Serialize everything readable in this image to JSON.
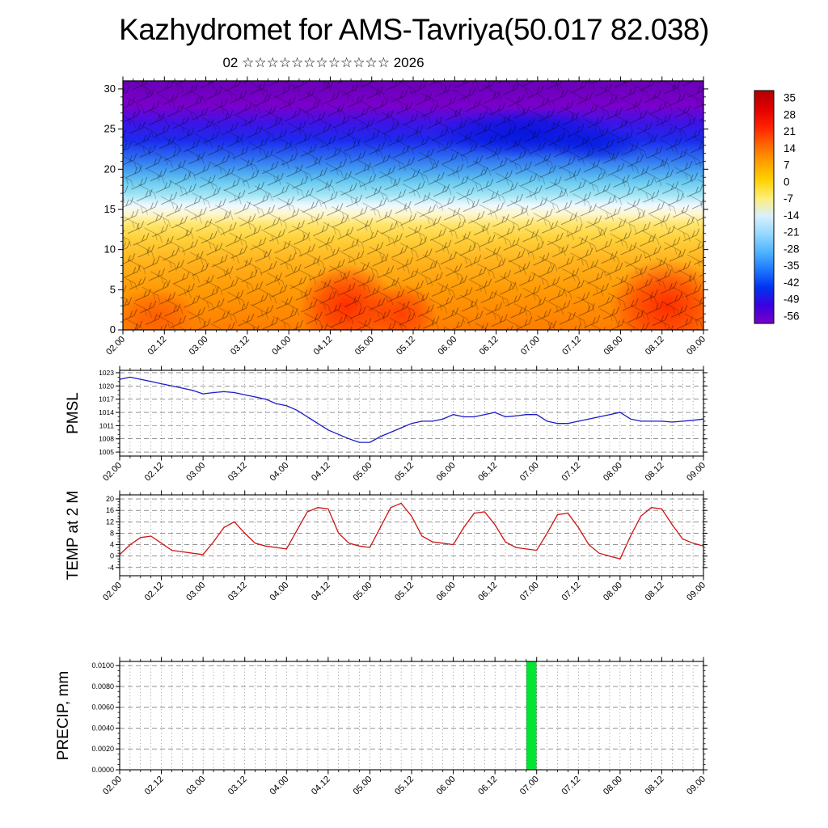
{
  "header": {
    "title": "Kazhydromet for AMS-Tavriya(50.017 82.038)",
    "subtitle": "02 ☆☆☆☆☆☆☆☆☆☆☆☆ 2026"
  },
  "time_axis": {
    "start": "02.00",
    "end": "09.00",
    "step_hours": 3,
    "labels": [
      "02.00",
      "02.12",
      "03.00",
      "03.12",
      "04.00",
      "04.12",
      "05.00",
      "05.12",
      "06.00",
      "06.12",
      "07.00",
      "07.12",
      "08.00",
      "08.12",
      "09.00"
    ]
  },
  "chart_data": [
    {
      "type": "heatmap",
      "name": "upper-air",
      "title": "time-height cross-section: temperature shading with wind barbs",
      "ylabel": "",
      "ylim": [
        0,
        31
      ],
      "yticks": [
        0,
        5,
        10,
        15,
        20,
        25,
        30
      ],
      "ytick_labels": [
        "0",
        "5",
        "10",
        "15",
        "20",
        "25",
        "30"
      ],
      "overlay": "wind-barbs",
      "colorbar": {
        "ticks": [
          35,
          28,
          21,
          14,
          7,
          0,
          -7,
          -14,
          -21,
          -28,
          -35,
          -42,
          -49,
          -56
        ],
        "tick_labels": [
          "35",
          "28",
          "21",
          "14",
          "7",
          "0",
          "-7",
          "-14",
          "-21",
          "-28",
          "-35",
          "-42",
          "-49",
          "-56"
        ],
        "colors": [
          "#b00000",
          "#e00000",
          "#ff1e00",
          "#ff6400",
          "#ffa000",
          "#ffd200",
          "#ffee78",
          "#d8f0ff",
          "#96d8ff",
          "#50b4ff",
          "#1e78ff",
          "#0032f0",
          "#3c00e0",
          "#7800c8"
        ]
      }
    },
    {
      "type": "line",
      "name": "pmsl",
      "ylabel": "PMSL",
      "color": "#1a1ac8",
      "ylim": [
        1005,
        1023
      ],
      "yticks": [
        1005,
        1008,
        1011,
        1014,
        1017,
        1020,
        1023
      ],
      "ytick_labels": [
        "1005",
        "1008",
        "1011",
        "1014",
        "1017",
        "1020",
        "1023"
      ],
      "values": [
        1021.5,
        1022,
        1021.5,
        1021,
        1020.5,
        1020,
        1019.5,
        1019,
        1018.2,
        1018.5,
        1018.7,
        1018.5,
        1018,
        1017.5,
        1017,
        1016,
        1015.5,
        1014.5,
        1013,
        1011.5,
        1010,
        1009,
        1008,
        1007.2,
        1007.2,
        1008.5,
        1009.5,
        1010.5,
        1011.5,
        1012,
        1012,
        1012.5,
        1013.5,
        1013,
        1013,
        1013.5,
        1014,
        1013,
        1013.2,
        1013.5,
        1013.5,
        1012,
        1011.5,
        1011.5,
        1012,
        1012.5,
        1013,
        1013.5,
        1014,
        1012.5,
        1012,
        1012,
        1012,
        1011.8,
        1012,
        1012.2,
        1012.5
      ]
    },
    {
      "type": "line",
      "name": "temp2m",
      "ylabel": "TEMP at 2 M",
      "color": "#d01414",
      "ylim": [
        -4,
        20
      ],
      "yticks": [
        -4,
        0,
        4,
        8,
        12,
        16,
        20
      ],
      "ytick_labels": [
        "-4",
        "0",
        "4",
        "8",
        "12",
        "16",
        "20"
      ],
      "values": [
        0.5,
        4,
        6.5,
        7,
        4.5,
        2,
        1.5,
        1,
        0.5,
        5,
        10,
        12,
        8,
        4.5,
        3.5,
        3,
        2.5,
        9,
        15.5,
        17,
        16.5,
        8,
        4.5,
        3.5,
        3,
        10,
        17,
        18.5,
        14,
        7,
        5,
        4.5,
        4,
        10,
        15,
        15.5,
        11,
        5,
        3,
        2.5,
        2,
        8,
        14.5,
        15,
        10,
        4,
        1,
        0,
        -1,
        7,
        14,
        17,
        16.5,
        11,
        6,
        4.5,
        3.5
      ]
    },
    {
      "type": "bar",
      "name": "precip",
      "ylabel": "PRECIP, mm",
      "color": "#00e632",
      "ylim": [
        0,
        0.01
      ],
      "yticks": [
        0,
        0.002,
        0.004,
        0.006,
        0.008,
        0.01
      ],
      "ytick_labels": [
        "0.0000",
        "0.0020",
        "0.0040",
        "0.0060",
        "0.0080",
        "0.0100"
      ],
      "values": [
        0,
        0,
        0,
        0,
        0,
        0,
        0,
        0,
        0,
        0,
        0,
        0,
        0,
        0,
        0,
        0,
        0,
        0,
        0,
        0,
        0,
        0,
        0,
        0,
        0,
        0,
        0,
        0,
        0,
        0,
        0,
        0,
        0,
        0,
        0,
        0,
        0,
        0,
        0,
        0,
        0.0104,
        0,
        0,
        0,
        0,
        0,
        0,
        0,
        0,
        0,
        0,
        0,
        0,
        0,
        0,
        0,
        0
      ]
    }
  ]
}
